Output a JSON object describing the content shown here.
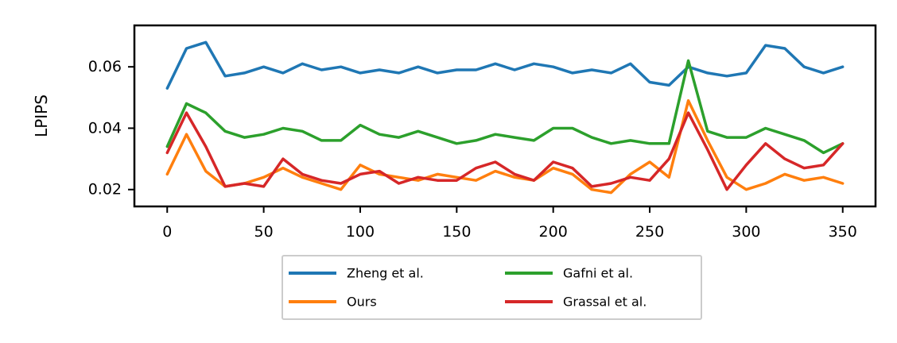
{
  "chart_data": {
    "type": "line",
    "title": "",
    "xlabel": "",
    "ylabel": "LPIPS",
    "xlim": [
      -17,
      367
    ],
    "ylim": [
      0.0145,
      0.0735
    ],
    "xticks": [
      0,
      50,
      100,
      150,
      200,
      250,
      300,
      350
    ],
    "xtick_labels": [
      "0",
      "50",
      "100",
      "150",
      "200",
      "250",
      "300",
      "350"
    ],
    "yticks": [
      0.02,
      0.04,
      0.06
    ],
    "ytick_labels": [
      "0.02",
      "0.04",
      "0.06"
    ],
    "grid": false,
    "legend_placement": "below plot, center, 2 columns",
    "x": [
      0,
      10,
      20,
      30,
      40,
      50,
      60,
      70,
      80,
      90,
      100,
      110,
      120,
      130,
      140,
      150,
      160,
      170,
      180,
      190,
      200,
      210,
      220,
      230,
      240,
      250,
      260,
      270,
      280,
      290,
      300,
      310,
      320,
      330,
      340,
      350
    ],
    "series": [
      {
        "name": "Zheng et al.",
        "color": "#1f77b4",
        "values": [
          0.053,
          0.066,
          0.068,
          0.057,
          0.058,
          0.06,
          0.058,
          0.061,
          0.059,
          0.06,
          0.058,
          0.059,
          0.058,
          0.06,
          0.058,
          0.059,
          0.059,
          0.061,
          0.059,
          0.061,
          0.06,
          0.058,
          0.059,
          0.058,
          0.061,
          0.055,
          0.054,
          0.06,
          0.058,
          0.057,
          0.058,
          0.067,
          0.066,
          0.06,
          0.058,
          0.06
        ]
      },
      {
        "name": "Ours",
        "color": "#ff7f0e",
        "values": [
          0.025,
          0.038,
          0.026,
          0.021,
          0.022,
          0.024,
          0.027,
          0.024,
          0.022,
          0.02,
          0.028,
          0.025,
          0.024,
          0.023,
          0.025,
          0.024,
          0.023,
          0.026,
          0.024,
          0.023,
          0.027,
          0.025,
          0.02,
          0.019,
          0.025,
          0.029,
          0.024,
          0.049,
          0.036,
          0.024,
          0.02,
          0.022,
          0.025,
          0.023,
          0.024,
          0.022
        ]
      },
      {
        "name": "Gafni et al.",
        "color": "#2ca02c",
        "values": [
          0.034,
          0.048,
          0.045,
          0.039,
          0.037,
          0.038,
          0.04,
          0.039,
          0.036,
          0.036,
          0.041,
          0.038,
          0.037,
          0.039,
          0.037,
          0.035,
          0.036,
          0.038,
          0.037,
          0.036,
          0.04,
          0.04,
          0.037,
          0.035,
          0.036,
          0.035,
          0.035,
          0.062,
          0.039,
          0.037,
          0.037,
          0.04,
          0.038,
          0.036,
          0.032,
          0.035
        ]
      },
      {
        "name": "Grassal et al.",
        "color": "#d62728",
        "values": [
          0.032,
          0.045,
          0.034,
          0.021,
          0.022,
          0.021,
          0.03,
          0.025,
          0.023,
          0.022,
          0.025,
          0.026,
          0.022,
          0.024,
          0.023,
          0.023,
          0.027,
          0.029,
          0.025,
          0.023,
          0.029,
          0.027,
          0.021,
          0.022,
          0.024,
          0.023,
          0.03,
          0.045,
          0.033,
          0.02,
          0.028,
          0.035,
          0.03,
          0.027,
          0.028,
          0.035
        ]
      }
    ]
  }
}
